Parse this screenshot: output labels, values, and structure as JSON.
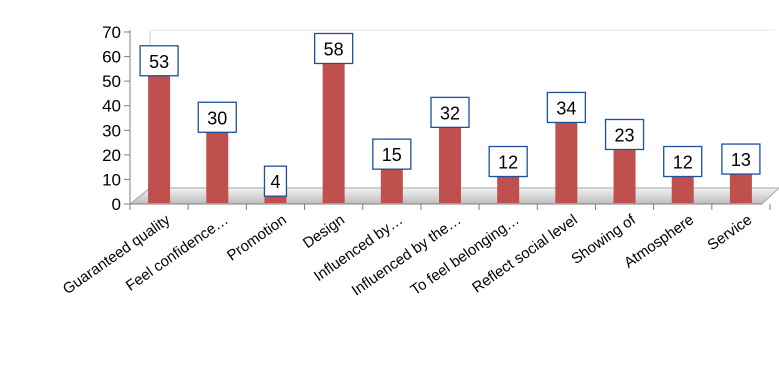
{
  "chart_data": {
    "type": "bar",
    "categories": [
      "Guaranteed quality",
      "Feel confidence…",
      "Promotion",
      "Design",
      "Influenced by…",
      "Influenced by the…",
      "To feel belonging…",
      "Reflect social level",
      "Showing of",
      "Atmosphere",
      "Service"
    ],
    "values": [
      53,
      30,
      4,
      58,
      15,
      32,
      12,
      34,
      23,
      12,
      13
    ],
    "ylim": [
      0,
      70
    ],
    "yticks": [
      0,
      10,
      20,
      30,
      40,
      50,
      60,
      70
    ],
    "grid": false,
    "legend": "none",
    "colors": {
      "bar": "#c0504d",
      "floor": "#c8c8c8",
      "data_label_border": "#1f4e9c",
      "axis": "#7f7f7f"
    }
  }
}
